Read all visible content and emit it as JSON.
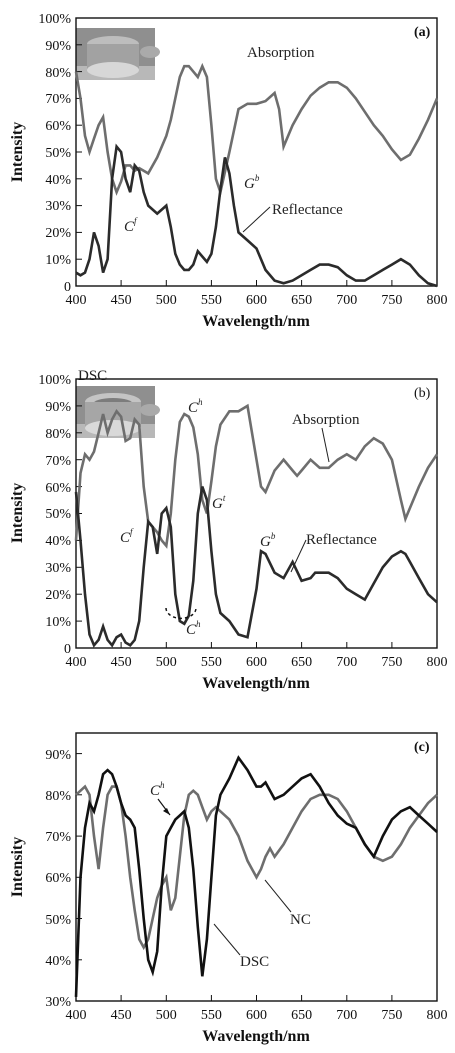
{
  "chart_data": [
    {
      "panel": "(a)",
      "type": "line",
      "xlabel": "Wavelength/nm",
      "ylabel": "Intensity",
      "xlim": [
        400,
        800
      ],
      "ylim": [
        0,
        100
      ],
      "x_ticks": [
        "400",
        "450",
        "500",
        "550",
        "600",
        "650",
        "700",
        "750",
        "800"
      ],
      "y_ticks": [
        "0",
        "10%",
        "20%",
        "30%",
        "40%",
        "50%",
        "60%",
        "70%",
        "80%",
        "90%",
        "100%"
      ],
      "series": [
        {
          "name": "Absorption",
          "color": "#6e6e6e",
          "x": [
            400,
            405,
            410,
            415,
            420,
            425,
            430,
            435,
            440,
            445,
            450,
            455,
            460,
            465,
            470,
            480,
            490,
            500,
            505,
            510,
            515,
            520,
            525,
            530,
            535,
            540,
            545,
            550,
            555,
            560,
            570,
            580,
            590,
            600,
            610,
            620,
            625,
            630,
            640,
            650,
            660,
            670,
            680,
            690,
            700,
            710,
            720,
            730,
            740,
            750,
            760,
            770,
            780,
            790,
            800
          ],
          "y": [
            80,
            70,
            56,
            50,
            55,
            60,
            63,
            50,
            40,
            35,
            39,
            45,
            45,
            43,
            44,
            42,
            48,
            56,
            62,
            70,
            78,
            82,
            82,
            80,
            78,
            82,
            78,
            60,
            40,
            35,
            50,
            66,
            68,
            68,
            69,
            72,
            66,
            52,
            60,
            66,
            71,
            74,
            76,
            76,
            74,
            70,
            65,
            60,
            56,
            51,
            47,
            49,
            55,
            62,
            70
          ]
        },
        {
          "name": "Reflectance",
          "color": "#2b2b2b",
          "x": [
            400,
            405,
            410,
            415,
            420,
            425,
            430,
            435,
            440,
            445,
            450,
            455,
            460,
            465,
            470,
            475,
            480,
            490,
            500,
            505,
            510,
            515,
            520,
            525,
            530,
            535,
            540,
            545,
            550,
            555,
            560,
            565,
            570,
            575,
            580,
            590,
            600,
            610,
            620,
            630,
            640,
            650,
            660,
            670,
            680,
            690,
            700,
            710,
            720,
            730,
            740,
            750,
            760,
            770,
            780,
            790,
            800
          ],
          "y": [
            5,
            4,
            5,
            10,
            20,
            15,
            5,
            10,
            40,
            52,
            50,
            40,
            35,
            45,
            43,
            35,
            30,
            27,
            30,
            22,
            12,
            8,
            6,
            6,
            8,
            13,
            11,
            9,
            12,
            22,
            36,
            48,
            42,
            30,
            20,
            17,
            14,
            6,
            2,
            1,
            2,
            4,
            6,
            8,
            8,
            7,
            4,
            2,
            2,
            4,
            6,
            8,
            10,
            8,
            4,
            1,
            0
          ]
        }
      ],
      "annotations": {
        "cf": "C",
        "cf_sup": "f",
        "gb": "G",
        "gb_sup": "b"
      }
    },
    {
      "panel": "(b)",
      "type": "line",
      "xlabel": "Wavelength/nm",
      "ylabel": "Intensity",
      "xlim": [
        400,
        800
      ],
      "ylim": [
        0,
        100
      ],
      "x_ticks": [
        "400",
        "450",
        "500",
        "550",
        "600",
        "650",
        "700",
        "750",
        "800"
      ],
      "y_ticks": [
        "0",
        "10%",
        "20%",
        "30%",
        "40%",
        "50%",
        "60%",
        "70%",
        "80%",
        "90%",
        "100%"
      ],
      "inset_label": "DSC",
      "series": [
        {
          "name": "Absorption",
          "color": "#6e6e6e",
          "x": [
            400,
            405,
            410,
            415,
            420,
            425,
            430,
            435,
            440,
            445,
            450,
            455,
            460,
            465,
            470,
            475,
            480,
            485,
            490,
            495,
            500,
            505,
            510,
            515,
            520,
            525,
            530,
            535,
            540,
            545,
            550,
            555,
            560,
            570,
            580,
            590,
            600,
            605,
            610,
            620,
            630,
            640,
            645,
            650,
            660,
            670,
            680,
            690,
            700,
            710,
            720,
            730,
            740,
            750,
            760,
            765,
            770,
            780,
            790,
            800
          ],
          "y": [
            40,
            65,
            72,
            70,
            73,
            80,
            87,
            80,
            85,
            88,
            86,
            77,
            78,
            85,
            83,
            60,
            47,
            45,
            43,
            40,
            38,
            50,
            70,
            84,
            87,
            86,
            82,
            72,
            55,
            50,
            62,
            75,
            83,
            88,
            88,
            90,
            70,
            60,
            58,
            66,
            70,
            66,
            64,
            66,
            70,
            67,
            67,
            70,
            72,
            70,
            75,
            78,
            76,
            70,
            55,
            48,
            52,
            60,
            67,
            72
          ]
        },
        {
          "name": "Reflectance",
          "color": "#2b2b2b",
          "x": [
            400,
            405,
            410,
            415,
            420,
            425,
            430,
            435,
            440,
            445,
            450,
            455,
            460,
            465,
            470,
            475,
            480,
            485,
            490,
            495,
            500,
            505,
            510,
            515,
            520,
            525,
            530,
            535,
            540,
            545,
            550,
            555,
            560,
            570,
            580,
            590,
            600,
            605,
            610,
            620,
            630,
            640,
            650,
            660,
            665,
            670,
            680,
            690,
            700,
            710,
            720,
            730,
            740,
            750,
            760,
            765,
            770,
            780,
            790,
            800
          ],
          "y": [
            58,
            40,
            20,
            5,
            1,
            3,
            8,
            3,
            1,
            4,
            5,
            2,
            1,
            3,
            10,
            30,
            47,
            45,
            35,
            50,
            52,
            45,
            20,
            10,
            9,
            12,
            25,
            50,
            60,
            55,
            36,
            20,
            13,
            10,
            5,
            4,
            22,
            36,
            35,
            28,
            26,
            32,
            25,
            26,
            28,
            28,
            28,
            26,
            22,
            20,
            18,
            24,
            30,
            34,
            36,
            35,
            32,
            26,
            20,
            17
          ]
        }
      ],
      "annotations": {
        "cf": "C",
        "cf_sup": "f",
        "ch_top": "C",
        "ch_top_sup": "h",
        "gt": "G",
        "gt_sup": "t",
        "gb": "G",
        "gb_sup": "b",
        "ch_bottom": "C",
        "ch_bottom_sup": "h"
      }
    },
    {
      "panel": "(c)",
      "type": "line",
      "xlabel": "Wavelength/nm",
      "ylabel": "Intensity",
      "xlim": [
        400,
        800
      ],
      "ylim": [
        30,
        95
      ],
      "x_ticks": [
        "400",
        "450",
        "500",
        "550",
        "600",
        "650",
        "700",
        "750",
        "800"
      ],
      "y_ticks": [
        "30%",
        "40%",
        "50%",
        "60%",
        "70%",
        "80%",
        "90%"
      ],
      "series": [
        {
          "name": "NC",
          "color": "#6e6e6e",
          "x": [
            400,
            405,
            410,
            415,
            420,
            425,
            430,
            435,
            440,
            445,
            450,
            455,
            460,
            465,
            470,
            475,
            480,
            485,
            490,
            495,
            500,
            505,
            510,
            515,
            520,
            525,
            530,
            535,
            540,
            545,
            550,
            555,
            560,
            570,
            580,
            590,
            600,
            605,
            610,
            615,
            620,
            630,
            640,
            650,
            660,
            670,
            680,
            690,
            700,
            710,
            720,
            730,
            740,
            750,
            760,
            770,
            780,
            790,
            800
          ],
          "y": [
            80,
            81,
            82,
            80,
            70,
            62,
            72,
            80,
            82,
            82,
            78,
            70,
            60,
            52,
            45,
            43,
            45,
            50,
            55,
            58,
            60,
            52,
            55,
            65,
            75,
            80,
            81,
            80,
            77,
            74,
            76,
            77,
            76,
            74,
            70,
            64,
            60,
            62,
            65,
            67,
            65,
            68,
            72,
            76,
            79,
            80,
            80,
            79,
            76,
            72,
            68,
            65,
            64,
            65,
            68,
            72,
            75,
            78,
            80
          ]
        },
        {
          "name": "DSC",
          "color": "#111111",
          "x": [
            400,
            405,
            410,
            415,
            420,
            425,
            430,
            435,
            440,
            445,
            450,
            455,
            460,
            465,
            470,
            475,
            480,
            485,
            490,
            495,
            500,
            505,
            510,
            515,
            520,
            525,
            530,
            535,
            540,
            545,
            550,
            555,
            560,
            570,
            580,
            590,
            600,
            605,
            610,
            620,
            630,
            640,
            650,
            660,
            670,
            680,
            690,
            700,
            710,
            720,
            730,
            740,
            750,
            760,
            770,
            780,
            790,
            800
          ],
          "y": [
            31,
            60,
            72,
            78,
            76,
            80,
            85,
            86,
            85,
            82,
            78,
            75,
            74,
            72,
            62,
            50,
            40,
            37,
            42,
            58,
            70,
            72,
            74,
            75,
            76,
            72,
            62,
            48,
            36,
            45,
            60,
            75,
            80,
            84,
            89,
            86,
            82,
            82,
            83,
            79,
            80,
            82,
            84,
            85,
            82,
            78,
            75,
            73,
            72,
            68,
            65,
            70,
            74,
            76,
            77,
            75,
            73,
            71
          ]
        }
      ],
      "annotations": {
        "ch": "C",
        "ch_sup": "h"
      }
    }
  ]
}
